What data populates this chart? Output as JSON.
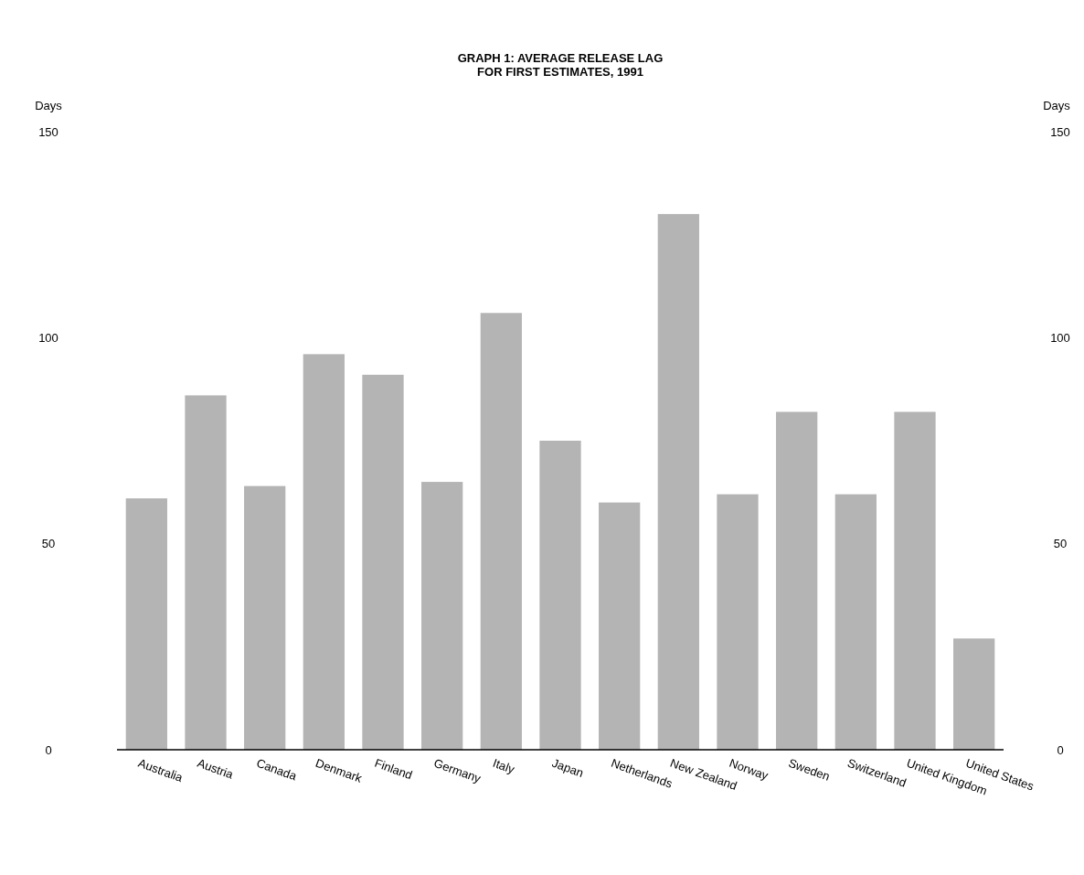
{
  "chart_data": {
    "type": "bar",
    "title": "GRAPH 1: AVERAGE RELEASE LAG",
    "subtitle": "FOR FIRST ESTIMATES, 1991",
    "ylabel": "Days",
    "y2label": "Days",
    "categories": [
      "Australia",
      "Austria",
      "Canada",
      "Denmark",
      "Finland",
      "Germany",
      "Italy",
      "Japan",
      "Netherlands",
      "New Zealand",
      "Norway",
      "Sweden",
      "Switzerland",
      "United Kingdom",
      "United States"
    ],
    "values": [
      61,
      86,
      64,
      96,
      91,
      65,
      106,
      75,
      60,
      130,
      62,
      82,
      62,
      82,
      27
    ],
    "color": "#b4b4b4",
    "ylim": [
      0,
      150
    ],
    "yticks": [
      0,
      50,
      100,
      150
    ],
    "y2lim": [
      0,
      150
    ],
    "y2ticks": [
      0,
      50,
      100,
      150
    ]
  }
}
